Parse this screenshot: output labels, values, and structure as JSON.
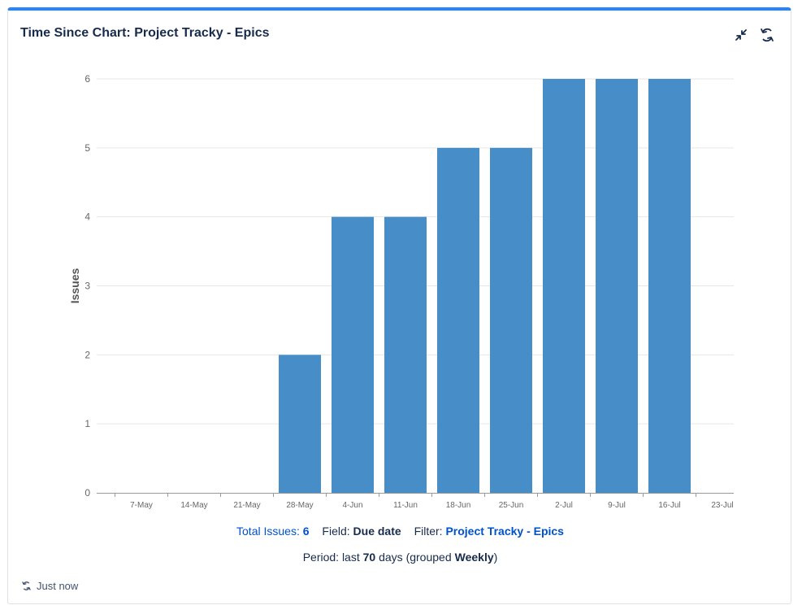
{
  "gadget": {
    "title": "Time Since Chart: Project Tracky - Epics",
    "minimize_icon": "minimize-icon",
    "refresh_icon": "refresh-icon",
    "accent_color": "#2684ff"
  },
  "summary": {
    "total_label": "Total Issues:",
    "total_value": "6",
    "field_label": "Field:",
    "field_value": "Due date",
    "filter_label": "Filter:",
    "filter_value": "Project Tracky - Epics"
  },
  "period": {
    "prefix": "Period: last",
    "days": "70",
    "middle": "days (grouped",
    "grouping": "Weekly",
    "suffix": ")"
  },
  "footer": {
    "refresh_text": "Just now"
  },
  "chart_data": {
    "type": "bar",
    "ylabel": "Issues",
    "xlabel": "",
    "categories": [
      "7-May",
      "14-May",
      "21-May",
      "28-May",
      "4-Jun",
      "11-Jun",
      "18-Jun",
      "25-Jun",
      "2-Jul",
      "9-Jul",
      "16-Jul",
      "23-Jul"
    ],
    "values": [
      0,
      0,
      0,
      2,
      4,
      4,
      5,
      5,
      6,
      6,
      6,
      0
    ],
    "ylim": [
      0,
      6
    ],
    "yticks": [
      0,
      1,
      2,
      3,
      4,
      5,
      6
    ],
    "grid": true,
    "bar_color": "#478ec9"
  }
}
